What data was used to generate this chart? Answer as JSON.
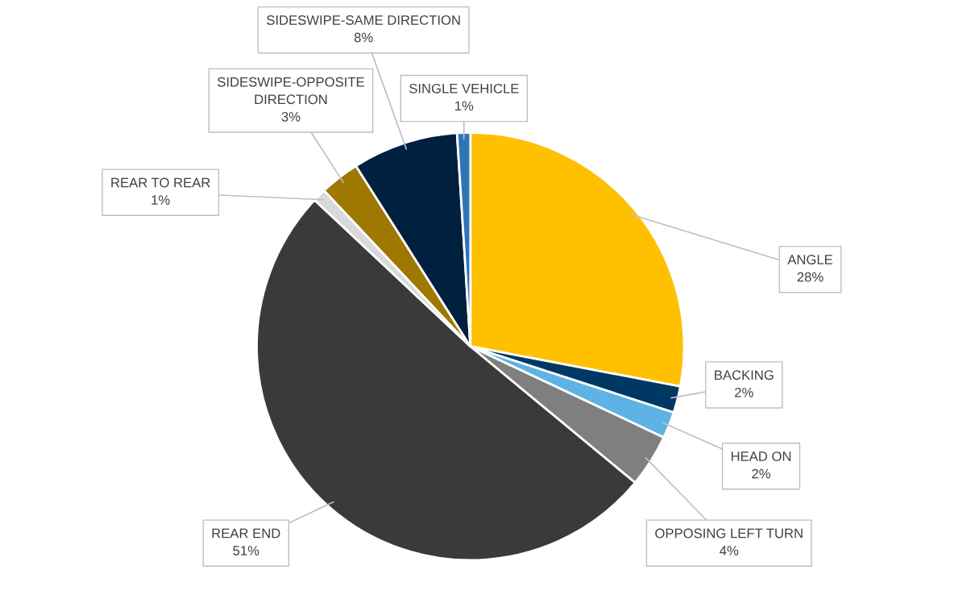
{
  "chart_data": {
    "type": "pie",
    "categories": [
      "ANGLE",
      "BACKING",
      "HEAD ON",
      "OPPOSING LEFT TURN",
      "REAR END",
      "REAR TO REAR",
      "SIDESWIPE-OPPOSITE\nDIRECTION",
      "SIDESWIPE-SAME DIRECTION",
      "SINGLE VEHICLE"
    ],
    "values": [
      28,
      2,
      2,
      4,
      51,
      1,
      3,
      8,
      1
    ],
    "value_labels": [
      "28%",
      "2%",
      "2%",
      "4%",
      "51%",
      "1%",
      "3%",
      "8%",
      "1%"
    ],
    "colors": [
      "#ffc000",
      "#003864",
      "#5eb3e4",
      "#7f7f7f",
      "#3b3a3b",
      "#d9d9d9",
      "#9e7800",
      "#00203f",
      "#2e75b6"
    ],
    "legend": false
  }
}
